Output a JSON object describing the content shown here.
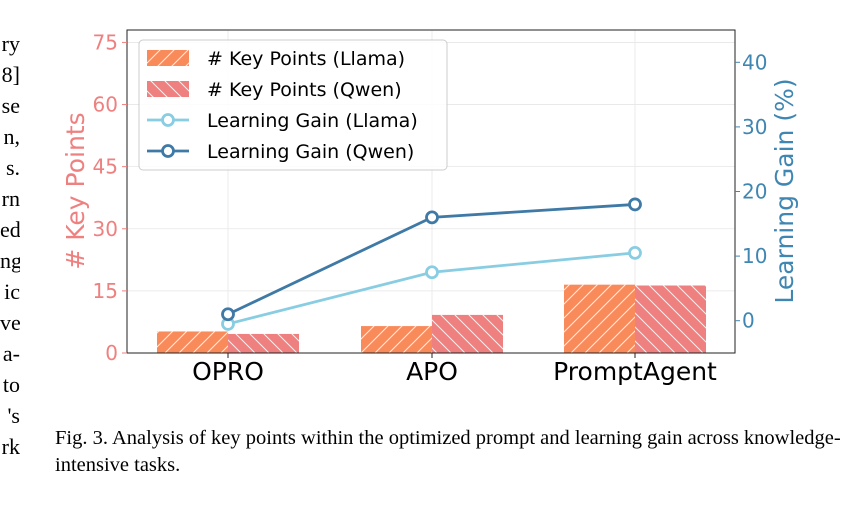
{
  "margin_fragments": [
    "ry",
    "8]",
    "se",
    "n,",
    "s.",
    "rn",
    "ed",
    "ng",
    "ic",
    "ve",
    "a-",
    "to",
    "'s",
    "rk"
  ],
  "caption": "Fig. 3.  Analysis of key points within the optimized prompt and learning gain across knowledge-intensive tasks.",
  "colors": {
    "llama_bar": "#f98a5a",
    "qwen_bar": "#ef8080",
    "llama_line": "#89cde3",
    "qwen_line": "#3f7aa6",
    "left_axis": "#ef8080",
    "right_axis": "#3f86b2"
  },
  "chart_data": {
    "type": "bar",
    "categories": [
      "OPRO",
      "APO",
      "PromptAgent"
    ],
    "bar_series": [
      {
        "name": "# Key Points (Llama)",
        "values": [
          5.2,
          6.5,
          16.5
        ]
      },
      {
        "name": "# Key Points (Qwen)",
        "values": [
          4.6,
          9.2,
          16.3
        ]
      }
    ],
    "line_series": [
      {
        "name": "Learning Gain (Llama)",
        "values": [
          -0.5,
          7.5,
          10.5
        ]
      },
      {
        "name": "Learning Gain (Qwen)",
        "values": [
          1.0,
          16.0,
          18.0
        ]
      }
    ],
    "ylabel": "# Key Points",
    "ylim": [
      0,
      78
    ],
    "yticks": [
      0,
      15,
      30,
      45,
      60,
      75
    ],
    "y2label": "Learning Gain (%)",
    "y2lim": [
      -5,
      45
    ],
    "y2ticks": [
      0,
      10,
      20,
      30,
      40
    ],
    "grid": true,
    "legend_position": "top-left"
  }
}
